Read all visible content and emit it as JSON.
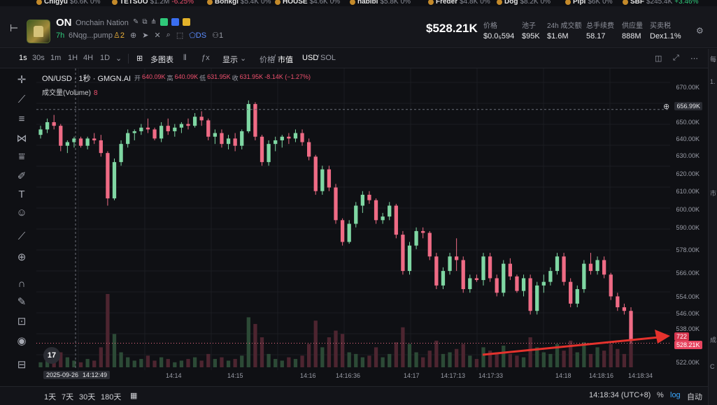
{
  "ticker": [
    {
      "name": "Chigyu",
      "val": "$6.6K",
      "chg": "0%",
      "dir": "flat"
    },
    {
      "name": "TETSUO",
      "val": "$1.2M",
      "chg": "-6.25%",
      "dir": "down"
    },
    {
      "name": "Bonkgi",
      "val": "$5.4K",
      "chg": "0%",
      "dir": "flat"
    },
    {
      "name": "HOUSE",
      "val": "$4.6K",
      "chg": "0%",
      "dir": "flat"
    },
    {
      "name": "habibi",
      "val": "$5.8K",
      "chg": "0%",
      "dir": "flat"
    },
    {
      "name": "Freder",
      "val": "$4.8K",
      "chg": "0%",
      "dir": "flat"
    },
    {
      "name": "Dog",
      "val": "$8.2K",
      "chg": "0%",
      "dir": "flat"
    },
    {
      "name": "Pipi",
      "val": "$6K",
      "chg": "0%",
      "dir": "flat"
    },
    {
      "name": "SBF",
      "val": "$245.4K",
      "chg": "+3.46%",
      "dir": "up"
    }
  ],
  "token": {
    "symbol": "ON",
    "name": "Onchain Nation",
    "age": "7h",
    "address": "6Nqg...pump",
    "holders_icon_count": "2",
    "ds_label": "DS",
    "ds_count": "1",
    "price": "$528.21K",
    "stats": [
      {
        "label": "价格",
        "value": "$0.0₅594"
      },
      {
        "label": "池子",
        "value": "$95K"
      },
      {
        "label": "24h 成交额",
        "value": "$1.6M"
      },
      {
        "label": "总手续费",
        "value": "58.17"
      },
      {
        "label": "供应量",
        "value": "888M"
      },
      {
        "label": "买卖税",
        "value": "Dex1.1%"
      }
    ]
  },
  "toolbar": {
    "intervals": [
      "1s",
      "30s",
      "1m",
      "1H",
      "4H",
      "1D"
    ],
    "active_interval": "1s",
    "multi_chart": "多图表",
    "display": "显示",
    "price_mcap": [
      "价格",
      "市值"
    ],
    "currency": [
      "USD",
      "SOL"
    ]
  },
  "chart_header": {
    "title": "ON/USD · 1秒 · GMGN.AI",
    "open_lbl": "开",
    "open": "640.09K",
    "high_lbl": "高",
    "high": "640.09K",
    "low_lbl": "低",
    "low": "631.95K",
    "close_lbl": "收",
    "close": "631.95K",
    "change": "-8.14K (−1.27%)",
    "volume_label": "成交量(Volume)",
    "volume_value": "8"
  },
  "chart_data": {
    "type": "candlestick",
    "y_ticks": [
      "670.00K",
      "660.00K",
      "650.00K",
      "640.00K",
      "630.00K",
      "620.00K",
      "610.00K",
      "600.00K",
      "590.00K",
      "578.00K",
      "566.00K",
      "554.00K",
      "546.00K",
      "538.00K",
      "522.00K"
    ],
    "x_ticks": [
      "2025-09-26",
      "14:12:49",
      "14:14",
      "14:15",
      "14:16",
      "14:16:36",
      "14:17",
      "14:17:13",
      "14:17:33",
      "14:18",
      "14:18:16",
      "14:18:34"
    ],
    "crosshair_price": "656.99K",
    "last_price_tag": "528.21K",
    "volume_tag": "722",
    "candles": [
      [
        643,
        648,
        641,
        646
      ],
      [
        646,
        652,
        644,
        650
      ],
      [
        650,
        654,
        646,
        648
      ],
      [
        648,
        649,
        634,
        637
      ],
      [
        637,
        640,
        633,
        639
      ],
      [
        639,
        642,
        636,
        641
      ],
      [
        641,
        642,
        636,
        637
      ],
      [
        637,
        642,
        635,
        641
      ],
      [
        641,
        644,
        638,
        640
      ],
      [
        640,
        643,
        631,
        633
      ],
      [
        633,
        634,
        604,
        608
      ],
      [
        608,
        630,
        607,
        628
      ],
      [
        628,
        640,
        626,
        638
      ],
      [
        638,
        646,
        636,
        644
      ],
      [
        644,
        646,
        640,
        645
      ],
      [
        645,
        649,
        643,
        647
      ],
      [
        647,
        652,
        644,
        646
      ],
      [
        646,
        647,
        640,
        641
      ],
      [
        641,
        650,
        639,
        648
      ],
      [
        648,
        652,
        643,
        645
      ],
      [
        645,
        649,
        642,
        647
      ],
      [
        647,
        650,
        644,
        649
      ],
      [
        649,
        652,
        646,
        648
      ],
      [
        648,
        655,
        647,
        653
      ],
      [
        653,
        656,
        648,
        651
      ],
      [
        651,
        652,
        640,
        642
      ],
      [
        642,
        646,
        638,
        644
      ],
      [
        644,
        646,
        636,
        638
      ],
      [
        638,
        643,
        635,
        641
      ],
      [
        641,
        644,
        634,
        637
      ],
      [
        637,
        646,
        635,
        645
      ],
      [
        645,
        662,
        644,
        660
      ],
      [
        660,
        661,
        640,
        642
      ],
      [
        642,
        643,
        626,
        628
      ],
      [
        628,
        640,
        626,
        638
      ],
      [
        638,
        642,
        634,
        640
      ],
      [
        640,
        643,
        636,
        642
      ],
      [
        642,
        644,
        638,
        641
      ],
      [
        641,
        646,
        639,
        644
      ],
      [
        644,
        646,
        637,
        639
      ],
      [
        639,
        641,
        629,
        631
      ],
      [
        631,
        632,
        610,
        612
      ],
      [
        612,
        626,
        610,
        624
      ],
      [
        624,
        626,
        612,
        614
      ],
      [
        614,
        616,
        594,
        596
      ],
      [
        596,
        597,
        582,
        584
      ],
      [
        584,
        596,
        583,
        594
      ],
      [
        594,
        606,
        592,
        604
      ],
      [
        604,
        612,
        600,
        610
      ],
      [
        610,
        612,
        605,
        607
      ],
      [
        607,
        608,
        594,
        596
      ],
      [
        596,
        600,
        594,
        598
      ],
      [
        598,
        606,
        596,
        604
      ],
      [
        604,
        605,
        586,
        588
      ],
      [
        588,
        590,
        566,
        568
      ],
      [
        568,
        584,
        566,
        582
      ],
      [
        582,
        592,
        580,
        590
      ],
      [
        590,
        592,
        586,
        589
      ],
      [
        589,
        590,
        574,
        576
      ],
      [
        576,
        578,
        558,
        560
      ],
      [
        560,
        570,
        558,
        568
      ],
      [
        568,
        578,
        566,
        576
      ],
      [
        576,
        586,
        568,
        574
      ],
      [
        574,
        576,
        556,
        558
      ],
      [
        558,
        566,
        556,
        564
      ],
      [
        564,
        566,
        562,
        563
      ],
      [
        563,
        578,
        560,
        576
      ],
      [
        576,
        578,
        562,
        564
      ],
      [
        564,
        566,
        554,
        556
      ],
      [
        556,
        574,
        554,
        572
      ],
      [
        572,
        575,
        563,
        565
      ],
      [
        565,
        566,
        556,
        557
      ],
      [
        557,
        566,
        554,
        564
      ],
      [
        564,
        566,
        544,
        546
      ],
      [
        546,
        562,
        544,
        560
      ],
      [
        560,
        566,
        556,
        562
      ],
      [
        562,
        570,
        560,
        568
      ],
      [
        568,
        578,
        566,
        576
      ],
      [
        576,
        578,
        560,
        562
      ],
      [
        562,
        564,
        548,
        550
      ],
      [
        550,
        560,
        548,
        558
      ],
      [
        558,
        574,
        556,
        572
      ],
      [
        572,
        578,
        566,
        568
      ],
      [
        568,
        576,
        566,
        574
      ],
      [
        574,
        576,
        564,
        566
      ],
      [
        566,
        567,
        552,
        554
      ],
      [
        554,
        556,
        546,
        548
      ],
      [
        548,
        550,
        544,
        546
      ],
      [
        546,
        548,
        528,
        530
      ]
    ],
    "volumes": [
      3,
      5,
      4,
      9,
      6,
      4,
      3,
      5,
      4,
      12,
      44,
      20,
      9,
      6,
      4,
      5,
      7,
      4,
      6,
      5,
      3,
      4,
      5,
      6,
      4,
      8,
      5,
      6,
      4,
      5,
      7,
      30,
      26,
      18,
      8,
      5,
      4,
      6,
      5,
      7,
      14,
      28,
      12,
      18,
      22,
      20,
      9,
      8,
      6,
      7,
      12,
      6,
      8,
      15,
      24,
      14,
      9,
      6,
      10,
      16,
      8,
      9,
      11,
      14,
      7,
      5,
      12,
      10,
      9,
      13,
      8,
      7,
      6,
      18,
      12,
      9,
      8,
      14,
      10,
      16,
      9,
      15,
      8,
      12,
      10,
      14,
      11,
      8,
      24
    ]
  },
  "bottombar": {
    "ranges": [
      "1天",
      "7天",
      "30天",
      "180天"
    ],
    "time": "14:18:34 (UTC+8)",
    "pct": "%",
    "log": "log",
    "auto": "自动"
  },
  "right_panel_labels": [
    "每",
    "1.",
    "市",
    "成",
    "C"
  ]
}
